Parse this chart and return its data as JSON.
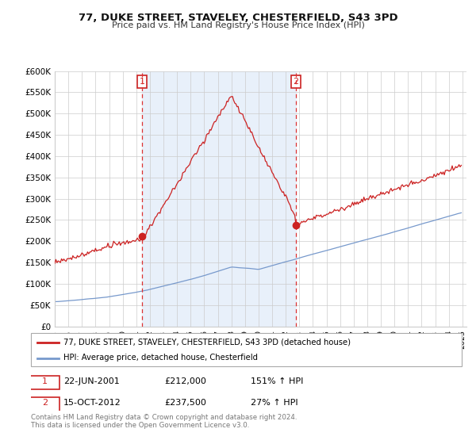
{
  "title": "77, DUKE STREET, STAVELEY, CHESTERFIELD, S43 3PD",
  "subtitle": "Price paid vs. HM Land Registry's House Price Index (HPI)",
  "ylabel_ticks": [
    "£0",
    "£50K",
    "£100K",
    "£150K",
    "£200K",
    "£250K",
    "£300K",
    "£350K",
    "£400K",
    "£450K",
    "£500K",
    "£550K",
    "£600K"
  ],
  "ytick_values": [
    0,
    50000,
    100000,
    150000,
    200000,
    250000,
    300000,
    350000,
    400000,
    450000,
    500000,
    550000,
    600000
  ],
  "hpi_color": "#7799cc",
  "price_color": "#cc2222",
  "vline_color": "#dd3333",
  "shade_color": "#e8f0fa",
  "legend_price_label": "77, DUKE STREET, STAVELEY, CHESTERFIELD, S43 3PD (detached house)",
  "legend_hpi_label": "HPI: Average price, detached house, Chesterfield",
  "background_color": "#ffffff",
  "grid_color": "#cccccc",
  "xstart_year": 1995,
  "xend_year": 2025
}
